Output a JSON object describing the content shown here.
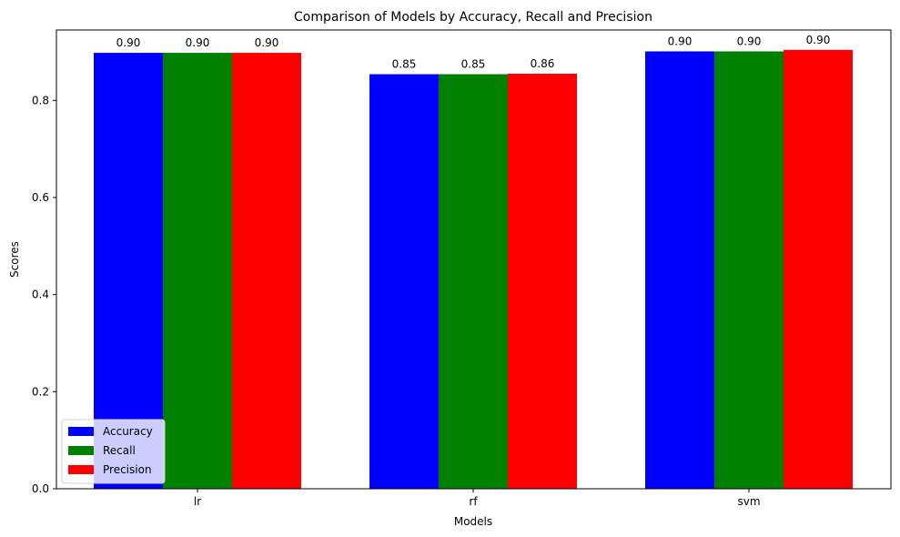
{
  "chart_data": {
    "type": "bar",
    "title": "Comparison of Models by Accuracy, Recall and Precision",
    "xlabel": "Models",
    "ylabel": "Scores",
    "categories": [
      "lr",
      "rf",
      "svm"
    ],
    "series": [
      {
        "name": "Accuracy",
        "color": "#0000ff",
        "values": [
          0.898,
          0.854,
          0.901
        ],
        "labels": [
          "0.90",
          "0.85",
          "0.90"
        ]
      },
      {
        "name": "Recall",
        "color": "#008000",
        "values": [
          0.898,
          0.854,
          0.901
        ],
        "labels": [
          "0.90",
          "0.85",
          "0.90"
        ]
      },
      {
        "name": "Precision",
        "color": "#ff0000",
        "values": [
          0.898,
          0.855,
          0.904
        ],
        "labels": [
          "0.90",
          "0.86",
          "0.90"
        ]
      }
    ],
    "ylim": [
      0,
      0.945
    ],
    "yticks": [
      0.0,
      0.2,
      0.4,
      0.6,
      0.8
    ],
    "ytick_labels": [
      "0.0",
      "0.2",
      "0.4",
      "0.6",
      "0.8"
    ],
    "grid": false,
    "legend_position": "lower-left"
  }
}
